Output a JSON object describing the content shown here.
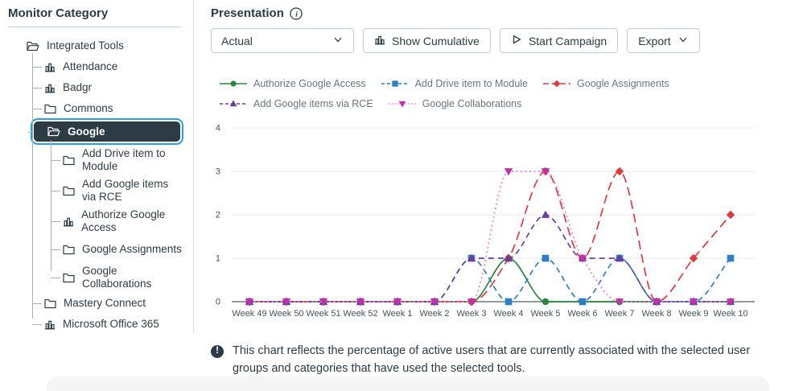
{
  "sidebar": {
    "title": "Monitor Category",
    "items": [
      {
        "label": "Integrated Tools",
        "icon": "folder-open",
        "level": 1,
        "selected": false
      },
      {
        "label": "Attendance",
        "icon": "chart",
        "level": 2,
        "selected": false
      },
      {
        "label": "Badgr",
        "icon": "chart",
        "level": 2,
        "selected": false
      },
      {
        "label": "Commons",
        "icon": "folder",
        "level": 2,
        "selected": false
      },
      {
        "label": "Google",
        "icon": "folder-open",
        "level": 2,
        "selected": true
      },
      {
        "label": "Add Drive item to Module",
        "icon": "folder",
        "level": 3,
        "selected": false
      },
      {
        "label": "Add Google items via RCE",
        "icon": "folder",
        "level": 3,
        "selected": false
      },
      {
        "label": "Authorize Google Access",
        "icon": "chart",
        "level": 3,
        "selected": false
      },
      {
        "label": "Google Assignments",
        "icon": "folder",
        "level": 3,
        "selected": false
      },
      {
        "label": "Google Collaborations",
        "icon": "folder",
        "level": 3,
        "selected": false
      },
      {
        "label": "Mastery Connect",
        "icon": "folder",
        "level": 2,
        "selected": false
      },
      {
        "label": "Microsoft Office 365",
        "icon": "chart",
        "level": 2,
        "selected": false
      }
    ]
  },
  "header": {
    "title": "Presentation"
  },
  "toolbar": {
    "presentation_select_value": "Actual",
    "show_cumulative_label": "Show Cumulative",
    "start_campaign_label": "Start Campaign",
    "export_label": "Export"
  },
  "chart_data": {
    "type": "line",
    "categories": [
      "Week 49",
      "Week 50",
      "Week 51",
      "Week 52",
      "Week 1",
      "Week 2",
      "Week 3",
      "Week 4",
      "Week 5",
      "Week 6",
      "Week 7",
      "Week 8",
      "Week 9",
      "Week 10"
    ],
    "ylim": [
      0,
      4
    ],
    "yticks": [
      0,
      1,
      2,
      3,
      4
    ],
    "grid": true,
    "legend_position": "top",
    "legend_rows": [
      [
        0,
        1,
        2
      ],
      [
        3,
        4
      ]
    ],
    "series": [
      {
        "name": "Authorize Google Access",
        "color": "#2D8540",
        "dash": "solid",
        "marker": "circle",
        "values": [
          0,
          0,
          0,
          0,
          0,
          0,
          0,
          1,
          0,
          0,
          0,
          0,
          0,
          0
        ]
      },
      {
        "name": "Add Drive item to Module",
        "color": "#2E7EC6",
        "dash": "dashed",
        "marker": "square",
        "values": [
          0,
          0,
          0,
          0,
          0,
          0,
          1,
          0,
          1,
          0,
          1,
          0,
          0,
          1
        ]
      },
      {
        "name": "Google Assignments",
        "color": "#E03A3E",
        "dash": "longdash",
        "marker": "diamond",
        "values": [
          0,
          0,
          0,
          0,
          0,
          0,
          0,
          1,
          3,
          1,
          3,
          0,
          1,
          2
        ]
      },
      {
        "name": "Add Google items via RCE",
        "color": "#6C3D9E",
        "dash": "dashed",
        "marker": "triangle-up",
        "values": [
          0,
          0,
          0,
          0,
          0,
          0,
          1,
          1,
          2,
          1,
          1,
          0,
          0,
          0
        ]
      },
      {
        "name": "Google Collaborations",
        "color": "#C42FAE",
        "line_color": "#EC7CD8",
        "dash": "dotted",
        "marker": "triangle-down",
        "values": [
          0,
          0,
          0,
          0,
          0,
          0,
          0,
          3,
          3,
          1,
          0,
          0,
          0,
          0
        ]
      }
    ]
  },
  "footer": {
    "note": "This chart reflects the percentage of active users that are currently associated with the selected user groups and categories that have used the selected tools."
  },
  "colors": {
    "text": "#2D3B45",
    "selected_bg": "#2D3B45",
    "focus_ring": "#2A9FD8",
    "border": "#C7CDD1",
    "legend_text": "#697580",
    "gridline": "#E9EAEC",
    "zero_line": "#6E7A85"
  }
}
